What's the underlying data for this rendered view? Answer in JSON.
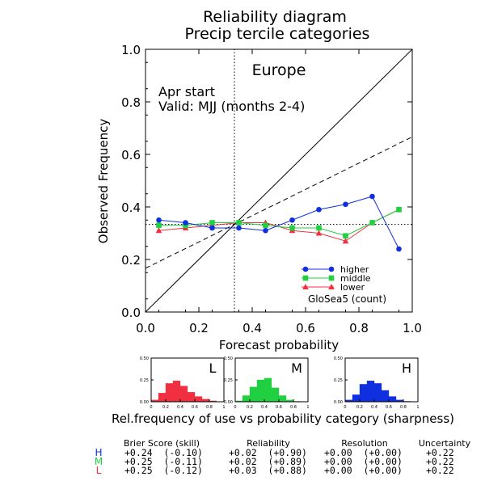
{
  "title": {
    "line1": "Reliability diagram",
    "line2": "Precip tercile categories"
  },
  "colors": {
    "higher": "#1030e0",
    "middle": "#20d040",
    "lower": "#f03040"
  },
  "chart_data": [
    {
      "type": "line",
      "region": "Europe",
      "start_label": "Apr start",
      "valid_label": "Valid: MJJ (months 2-4)",
      "xlabel": "Forecast probability",
      "ylabel": "Observed Frequency",
      "xlim": [
        0,
        1
      ],
      "ylim": [
        0,
        1
      ],
      "xticks": [
        "0.0",
        "0.2",
        "0.4",
        "0.6",
        "0.8",
        "1.0"
      ],
      "yticks": [
        "0.0",
        "0.2",
        "0.4",
        "0.6",
        "0.8",
        "1.0"
      ],
      "climatology": 0.3333,
      "legend_position": "bottom-right",
      "model_label": "GloSea5 (count)",
      "x": [
        0.05,
        0.15,
        0.25,
        0.35,
        0.45,
        0.55,
        0.65,
        0.75,
        0.85,
        0.95
      ],
      "series": [
        {
          "name": "higher",
          "key": "higher",
          "marker": "circle",
          "values": [
            0.35,
            0.34,
            0.32,
            0.32,
            0.31,
            0.35,
            0.39,
            0.41,
            0.44,
            0.24
          ]
        },
        {
          "name": "middle",
          "key": "middle",
          "marker": "square",
          "values": [
            0.33,
            0.33,
            0.34,
            0.34,
            0.33,
            0.32,
            0.32,
            0.29,
            0.34,
            0.39
          ]
        },
        {
          "name": "lower",
          "key": "lower",
          "marker": "triangle",
          "values": [
            0.31,
            0.32,
            0.33,
            0.34,
            0.34,
            0.31,
            0.3,
            0.27,
            0.34,
            0.39
          ]
        }
      ],
      "reference_lines": [
        "perfect reliability (diagonal)",
        "no-skill line (dashed)",
        "climatology (dotted)"
      ]
    },
    {
      "type": "bar",
      "panel": "L",
      "key": "lower",
      "yticks": [
        "0.00",
        "0.25",
        "0.50"
      ],
      "xticks": [
        "0",
        "0.2",
        "0.4",
        "0.6",
        "0.8",
        "1"
      ],
      "ylim": [
        0,
        0.5
      ],
      "values": [
        0.02,
        0.1,
        0.21,
        0.24,
        0.18,
        0.11,
        0.06,
        0.03,
        0.01,
        0.0
      ]
    },
    {
      "type": "bar",
      "panel": "M",
      "key": "middle",
      "yticks": [
        "0.00",
        "0.25",
        "0.50"
      ],
      "xticks": [
        "0",
        "0.2",
        "0.4",
        "0.6",
        "0.8",
        "1"
      ],
      "ylim": [
        0,
        0.5
      ],
      "values": [
        0.01,
        0.07,
        0.17,
        0.25,
        0.27,
        0.16,
        0.07,
        0.02,
        0.005,
        0.0
      ]
    },
    {
      "type": "bar",
      "panel": "H",
      "key": "higher",
      "yticks": [
        "0.00",
        "0.25",
        "0.50"
      ],
      "xticks": [
        "0",
        "0.2",
        "0.4",
        "0.6",
        "0.8",
        "1"
      ],
      "ylim": [
        0,
        0.5
      ],
      "values": [
        0.02,
        0.08,
        0.2,
        0.24,
        0.21,
        0.13,
        0.06,
        0.02,
        0.005,
        0.0
      ]
    }
  ],
  "sharpness_caption": "Rel.frequency of use vs probability category (sharpness)",
  "scores": {
    "headers": [
      "Brier Score (skill)",
      "Reliability",
      "Resolution",
      "Uncertainty"
    ],
    "rows": [
      {
        "label": "H",
        "key": "higher",
        "brier": "+0.24  (-0.10)",
        "reliability": "+0.02  (+0.90)",
        "resolution": "+0.00  (+0.00)",
        "uncertainty": "+0.22"
      },
      {
        "label": "M",
        "key": "middle",
        "brier": "+0.25  (-0.11)",
        "reliability": "+0.02  (+0.89)",
        "resolution": "+0.00  (+0.00)",
        "uncertainty": "+0.22"
      },
      {
        "label": "L",
        "key": "lower",
        "brier": "+0.25  (-0.12)",
        "reliability": "+0.03  (+0.88)",
        "resolution": "+0.00  (+0.00)",
        "uncertainty": "+0.22"
      }
    ]
  }
}
